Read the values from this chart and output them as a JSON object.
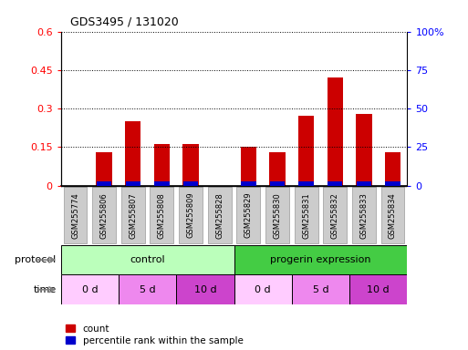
{
  "title": "GDS3495 / 131020",
  "samples": [
    "GSM255774",
    "GSM255806",
    "GSM255807",
    "GSM255808",
    "GSM255809",
    "GSM255828",
    "GSM255829",
    "GSM255830",
    "GSM255831",
    "GSM255832",
    "GSM255833",
    "GSM255834"
  ],
  "count_values": [
    0.0,
    0.13,
    0.25,
    0.16,
    0.16,
    0.0,
    0.15,
    0.13,
    0.27,
    0.42,
    0.28,
    0.13
  ],
  "percentile_values": [
    0.0,
    0.05,
    0.13,
    0.08,
    0.08,
    0.0,
    0.08,
    0.05,
    0.15,
    0.17,
    0.15,
    0.05
  ],
  "ylim_left": [
    0,
    0.6
  ],
  "ylim_right": [
    0,
    100
  ],
  "yticks_left": [
    0,
    0.15,
    0.3,
    0.45,
    0.6
  ],
  "yticks_right": [
    0,
    25,
    50,
    75,
    100
  ],
  "ytick_labels_left": [
    "0",
    "0.15",
    "0.3",
    "0.45",
    "0.6"
  ],
  "ytick_labels_right": [
    "0",
    "25",
    "50",
    "75",
    "100%"
  ],
  "bar_color_red": "#cc0000",
  "bar_color_blue": "#0000cc",
  "bar_width": 0.55,
  "bg_color": "#ffffff",
  "protocol_control_color": "#bbffbb",
  "protocol_progerin_color": "#44cc44",
  "time_color_0d": "#ffccff",
  "time_color_5d": "#ee88ee",
  "time_color_10d": "#cc44cc",
  "sample_box_color": "#cccccc",
  "legend_count_label": "count",
  "legend_pct_label": "percentile rank within the sample",
  "protocol_label": "protocol",
  "time_label": "time"
}
